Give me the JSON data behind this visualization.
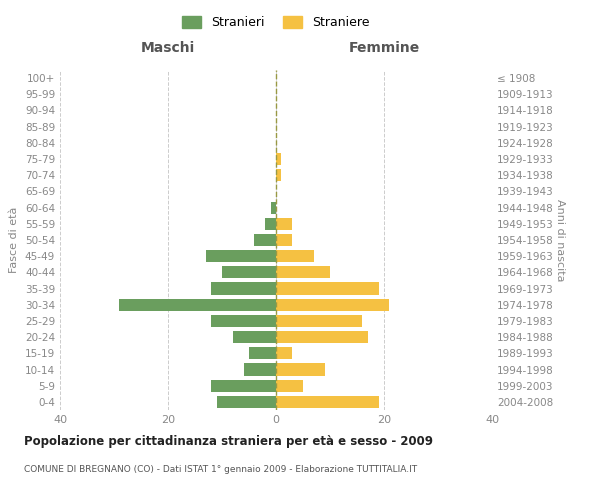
{
  "age_groups": [
    "0-4",
    "5-9",
    "10-14",
    "15-19",
    "20-24",
    "25-29",
    "30-34",
    "35-39",
    "40-44",
    "45-49",
    "50-54",
    "55-59",
    "60-64",
    "65-69",
    "70-74",
    "75-79",
    "80-84",
    "85-89",
    "90-94",
    "95-99",
    "100+"
  ],
  "birth_years": [
    "2004-2008",
    "1999-2003",
    "1994-1998",
    "1989-1993",
    "1984-1988",
    "1979-1983",
    "1974-1978",
    "1969-1973",
    "1964-1968",
    "1959-1963",
    "1954-1958",
    "1949-1953",
    "1944-1948",
    "1939-1943",
    "1934-1938",
    "1929-1933",
    "1924-1928",
    "1919-1923",
    "1914-1918",
    "1909-1913",
    "≤ 1908"
  ],
  "maschi": [
    11,
    12,
    6,
    5,
    8,
    12,
    29,
    12,
    10,
    13,
    4,
    2,
    1,
    0,
    0,
    0,
    0,
    0,
    0,
    0,
    0
  ],
  "femmine": [
    19,
    5,
    9,
    3,
    17,
    16,
    21,
    19,
    10,
    7,
    3,
    3,
    0,
    0,
    1,
    1,
    0,
    0,
    0,
    0,
    0
  ],
  "color_maschi": "#6a9e5e",
  "color_femmine": "#f5c142",
  "title": "Popolazione per cittadinanza straniera per età e sesso - 2009",
  "subtitle": "COMUNE DI BREGNANO (CO) - Dati ISTAT 1° gennaio 2009 - Elaborazione TUTTITALIA.IT",
  "label_left": "Maschi",
  "label_right": "Femmine",
  "ylabel_left": "Fasce di età",
  "ylabel_right": "Anni di nascita",
  "legend_maschi": "Stranieri",
  "legend_femmine": "Straniere",
  "xlim": 40,
  "background_color": "#ffffff",
  "grid_color": "#cccccc",
  "centerline_color": "#999944"
}
